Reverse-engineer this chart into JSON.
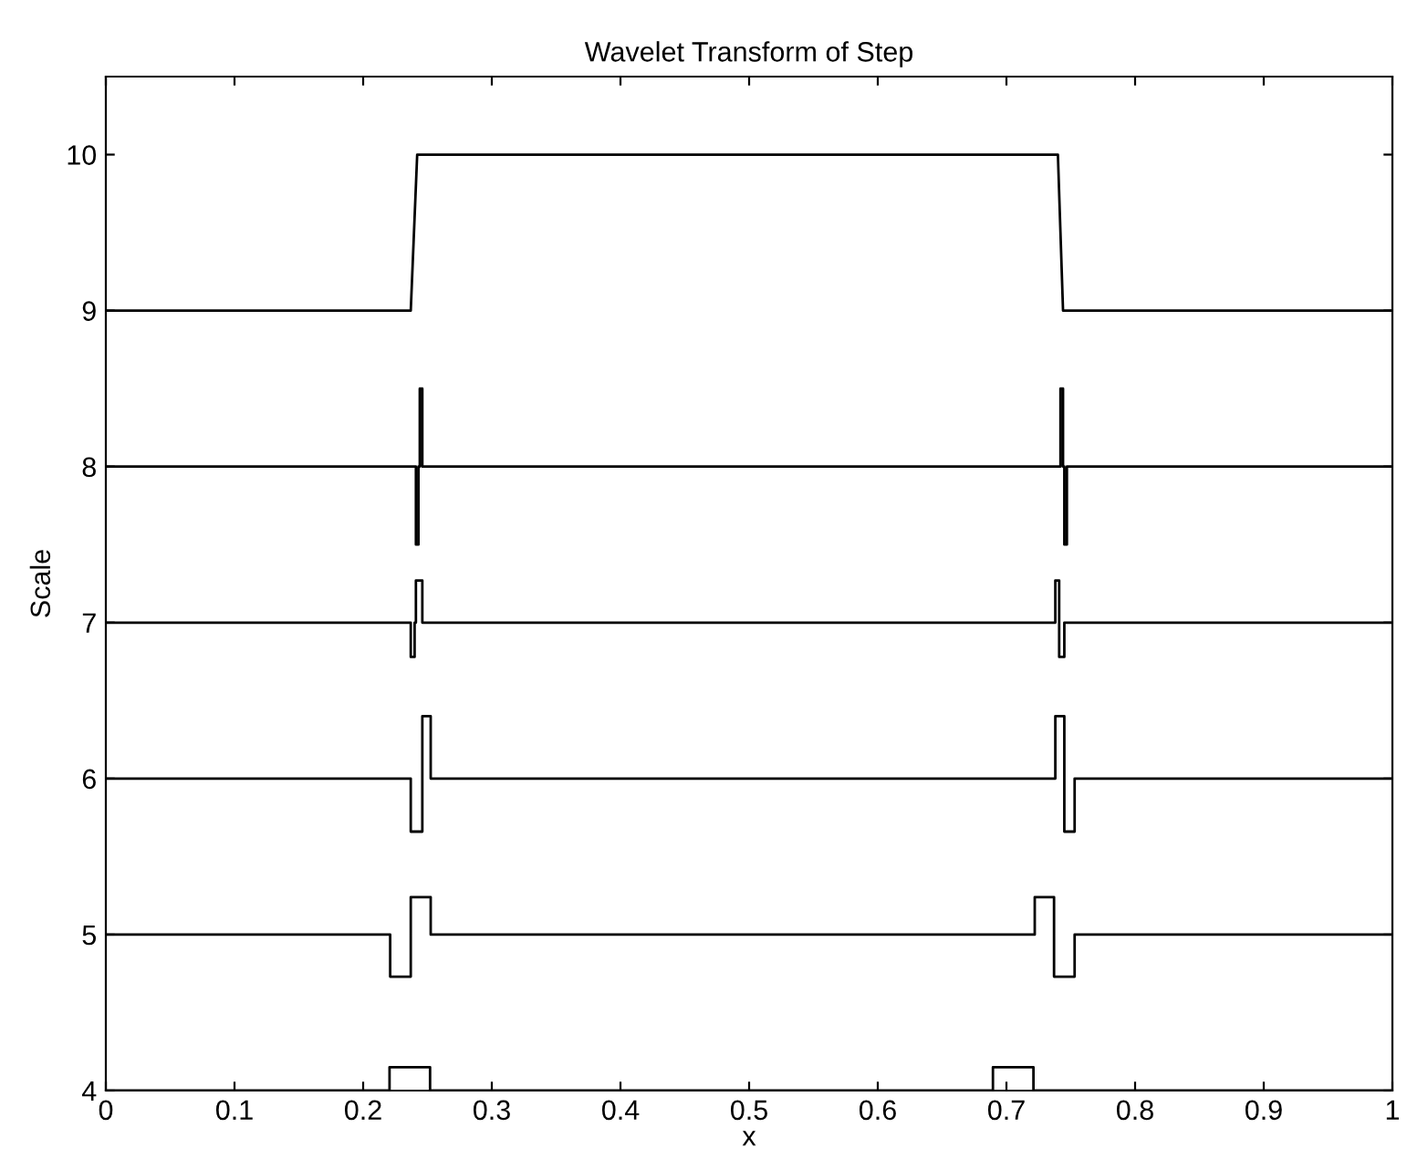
{
  "chart_data": {
    "type": "line",
    "title": "Wavelet Transform of Step",
    "xlabel": "x",
    "ylabel": "Scale",
    "series": [
      {
        "color": "#000000",
        "x": [
          0,
          0.237,
          0.242,
          0.74,
          0.744,
          1
        ],
        "values": [
          9,
          9,
          10,
          10,
          9,
          9
        ]
      },
      {
        "color": "#000000",
        "x": [
          0,
          0.241,
          0.241,
          0.243,
          0.243,
          0.244,
          0.244,
          0.246,
          0.246,
          0.742,
          0.742,
          0.744,
          0.744,
          0.745,
          0.745,
          0.747,
          0.747,
          1
        ],
        "values": [
          8,
          8,
          7.5,
          7.5,
          8,
          8,
          8.5,
          8.5,
          8,
          8,
          8.5,
          8.5,
          8,
          8,
          7.5,
          7.5,
          8,
          8
        ]
      },
      {
        "color": "#000000",
        "x": [
          0,
          0.237,
          0.237,
          0.24,
          0.24,
          0.241,
          0.241,
          0.246,
          0.246,
          0.738,
          0.738,
          0.741,
          0.741,
          0.745,
          0.745,
          1
        ],
        "values": [
          7,
          7,
          6.78,
          6.78,
          7,
          7,
          7.27,
          7.27,
          7,
          7,
          7.27,
          7.27,
          6.78,
          6.78,
          7,
          7
        ]
      },
      {
        "color": "#000000",
        "x": [
          0,
          0.237,
          0.237,
          0.246,
          0.246,
          0.2525,
          0.2525,
          0.738,
          0.738,
          0.745,
          0.745,
          0.753,
          0.753,
          1
        ],
        "values": [
          6,
          6,
          5.66,
          5.66,
          6.4,
          6.4,
          6,
          6,
          6.4,
          6.4,
          5.66,
          5.66,
          6,
          6
        ]
      },
      {
        "color": "#000000",
        "x": [
          0,
          0.221,
          0.221,
          0.237,
          0.237,
          0.2525,
          0.2525,
          0.722,
          0.722,
          0.737,
          0.737,
          0.753,
          0.753,
          1
        ],
        "values": [
          5,
          5,
          4.73,
          4.73,
          5.24,
          5.24,
          5,
          5,
          5.24,
          5.24,
          4.73,
          4.73,
          5,
          5
        ]
      },
      {
        "color": "#000000",
        "x": [
          0,
          0.2205,
          0.2205,
          0.252,
          0.252,
          0.6895,
          0.6895,
          0.721,
          0.721,
          1
        ],
        "values": [
          4,
          4,
          4.15,
          4.15,
          4,
          4,
          4.15,
          4.15,
          4,
          4
        ]
      }
    ],
    "xlim": [
      0,
      1
    ],
    "ylim": [
      4,
      10.5
    ],
    "xticks": [
      0,
      0.1,
      0.2,
      0.3,
      0.4,
      0.5,
      0.6,
      0.7,
      0.8,
      0.9,
      1
    ],
    "yticks": [
      4,
      5,
      6,
      7,
      8,
      9,
      10
    ],
    "grid": false,
    "marker": "none",
    "line_style": "solid"
  }
}
